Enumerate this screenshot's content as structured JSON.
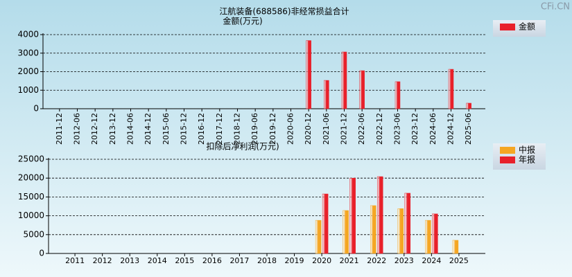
{
  "watermark": "CFi.CN",
  "chart_data": [
    {
      "type": "bar",
      "title": "江航装备(688586)非经常损益合计",
      "subtitle": "金额(万元)",
      "categories": [
        "2011-12",
        "2012-06",
        "2012-12",
        "2013-12",
        "2014-06",
        "2014-12",
        "2015-06",
        "2015-12",
        "2016-12",
        "2017-12",
        "2018-12",
        "2019-06",
        "2019-12",
        "2020-06",
        "2020-12",
        "2021-06",
        "2021-12",
        "2022-06",
        "2022-12",
        "2023-06",
        "2023-12",
        "2024-06",
        "2024-12",
        "2025-06"
      ],
      "series": [
        {
          "name": "金额",
          "color": "#e8202a",
          "values": [
            null,
            null,
            null,
            null,
            null,
            null,
            null,
            null,
            null,
            null,
            null,
            null,
            null,
            null,
            3680,
            1530,
            3065,
            2055,
            null,
            1460,
            null,
            null,
            2130,
            300
          ]
        }
      ],
      "ylim": [
        0,
        4000
      ],
      "yticks": [
        0,
        1000,
        2000,
        3000,
        4000
      ],
      "grid": true
    },
    {
      "type": "bar",
      "title": "扣除后净利润(万元)",
      "categories": [
        "2011",
        "2012",
        "2013",
        "2014",
        "2015",
        "2016",
        "2017",
        "2018",
        "2019",
        "2020",
        "2021",
        "2022",
        "2023",
        "2024",
        "2025"
      ],
      "series": [
        {
          "name": "中报",
          "color": "#f5a623",
          "values": [
            null,
            null,
            null,
            null,
            null,
            null,
            null,
            null,
            null,
            8800,
            11400,
            12700,
            11900,
            8800,
            3500
          ]
        },
        {
          "name": "年报",
          "color": "#e8202a",
          "values": [
            null,
            null,
            null,
            null,
            null,
            null,
            null,
            null,
            null,
            15800,
            20000,
            20400,
            16000,
            10500,
            null
          ]
        }
      ],
      "ylim": [
        0,
        25000
      ],
      "yticks": [
        0,
        5000,
        10000,
        15000,
        20000,
        25000
      ],
      "grid": true
    }
  ]
}
